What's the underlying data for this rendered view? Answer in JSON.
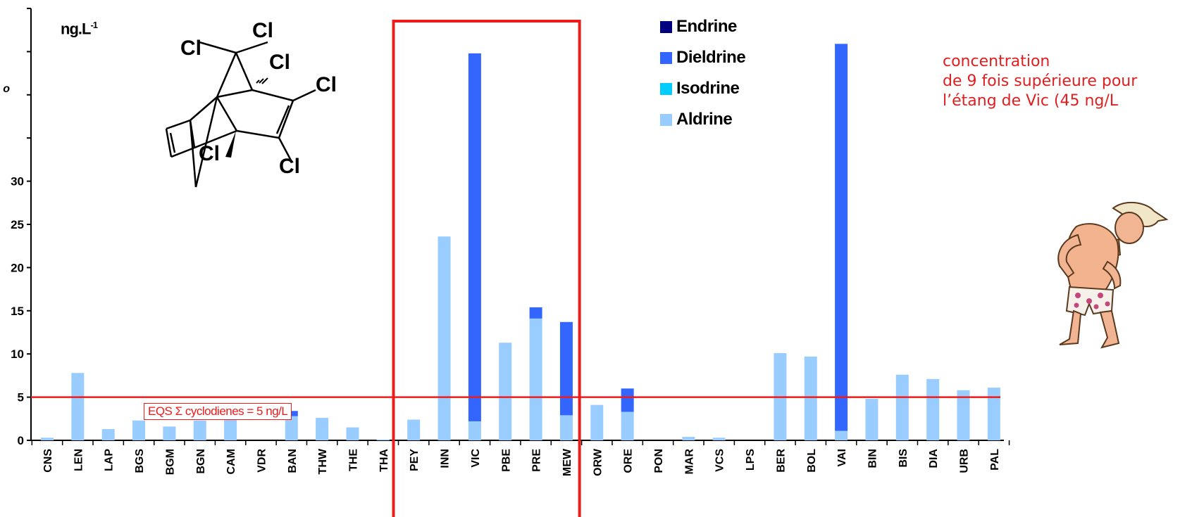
{
  "chart_data": {
    "type": "bar",
    "stacked": true,
    "unit_label": "ng.L",
    "unit_exponent": "-1",
    "categories": [
      "CNS",
      "LEN",
      "LAP",
      "BGS",
      "BGM",
      "BGN",
      "CAM",
      "VDR",
      "BAN",
      "THW",
      "THE",
      "THA",
      "PEY",
      "INN",
      "VIC",
      "PBE",
      "PRE",
      "MEW",
      "ORW",
      "ORE",
      "PON",
      "MAR",
      "VCS",
      "LPS",
      "BER",
      "BOL",
      "VAI",
      "BIN",
      "BIS",
      "DIA",
      "URB",
      "PAL"
    ],
    "series": [
      {
        "name": "Aldrine",
        "color": "#99ccff",
        "values": [
          0.3,
          7.8,
          1.3,
          2.3,
          1.6,
          2.3,
          2.4,
          0,
          2.8,
          2.6,
          1.5,
          0.1,
          2.4,
          23.6,
          2.2,
          11.3,
          14.1,
          2.9,
          4.1,
          3.3,
          0,
          0.4,
          0.3,
          0,
          10.1,
          9.7,
          1.1,
          4.8,
          7.6,
          7.1,
          5.8,
          6.1
        ]
      },
      {
        "name": "Isodrine",
        "color": "#00ccff",
        "values": [
          0,
          0,
          0,
          0,
          0,
          0,
          0,
          0,
          0,
          0,
          0,
          0,
          0,
          0,
          0,
          0,
          0,
          0,
          0,
          0,
          0,
          0,
          0,
          0,
          0,
          0,
          0,
          0,
          0,
          0,
          0,
          0
        ]
      },
      {
        "name": "Dieldrine",
        "color": "#3366ff",
        "values": [
          0,
          0,
          0,
          0,
          0,
          0,
          0,
          0,
          0.6,
          0,
          0,
          0,
          0,
          0,
          42.6,
          0,
          1.3,
          10.8,
          0,
          2.7,
          0,
          0,
          0,
          0,
          0,
          0,
          44.8,
          0,
          0,
          0,
          0,
          0
        ]
      },
      {
        "name": "Endrine",
        "color": "#000080",
        "values": [
          0,
          0,
          0,
          0,
          0,
          0,
          0,
          0,
          0,
          0,
          0,
          0,
          0,
          0,
          0,
          0,
          0,
          0,
          0,
          0,
          0,
          0,
          0,
          0,
          0,
          0,
          0,
          0,
          0,
          0,
          0,
          0
        ]
      }
    ],
    "y_ticks": [
      0,
      5,
      10,
      15,
      20,
      25,
      30
    ],
    "ylim": [
      0,
      50
    ],
    "eqs_line": {
      "value": 5,
      "label": "EQS Σ cyclodienes = 5 ng/L",
      "color": "#ee1b1b"
    },
    "highlight": {
      "from": "PEY",
      "to": "MEW",
      "color": "#ee1b1b"
    },
    "legend_order": [
      "Endrine",
      "Dieldrine",
      "Isodrine",
      "Aldrine"
    ],
    "legend_position": "top-center",
    "annotation": [
      "concentration",
      "de 9 fois supérieure pour",
      "l’étang de Vic (45 ng/L"
    ]
  },
  "molecule": {
    "atoms": [
      "Cl",
      "Cl",
      "Cl",
      "Cl",
      "Cl",
      "Cl"
    ]
  },
  "decoration": {
    "left_edge_glyph": "o"
  }
}
